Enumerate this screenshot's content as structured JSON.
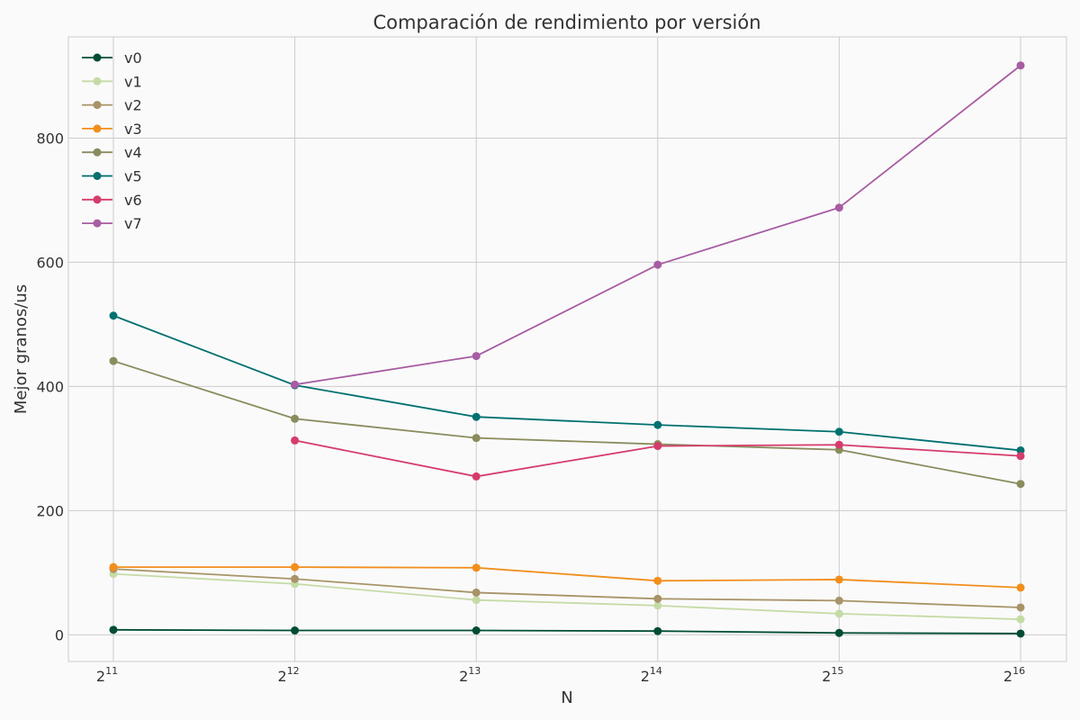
{
  "chart_data": {
    "type": "line",
    "title": "Comparación de rendimiento por versión",
    "xlabel": "N",
    "ylabel": "Mejor granos/us",
    "x_scale": "log2",
    "x": [
      2048,
      4096,
      8192,
      16384,
      32768,
      65536
    ],
    "x_tick_labels": [
      {
        "base": "2",
        "exp": "11"
      },
      {
        "base": "2",
        "exp": "12"
      },
      {
        "base": "2",
        "exp": "13"
      },
      {
        "base": "2",
        "exp": "14"
      },
      {
        "base": "2",
        "exp": "15"
      },
      {
        "base": "2",
        "exp": "16"
      }
    ],
    "y_ticks": [
      "0",
      "200",
      "400",
      "600",
      "800"
    ],
    "ylim": [
      -43,
      963
    ],
    "grid": true,
    "legend_position": "top-left",
    "series": [
      {
        "name": "v0",
        "color": "#004d33",
        "values": [
          8,
          7,
          7,
          6,
          3,
          2
        ]
      },
      {
        "name": "v1",
        "color": "#c5dba6",
        "values": [
          98,
          82,
          56,
          47,
          34,
          25
        ]
      },
      {
        "name": "v2",
        "color": "#a89468",
        "values": [
          106,
          90,
          68,
          58,
          55,
          44
        ]
      },
      {
        "name": "v3",
        "color": "#f28e1c",
        "values": [
          109,
          109,
          108,
          87,
          89,
          76
        ]
      },
      {
        "name": "v4",
        "color": "#8a8c5e",
        "values": [
          441,
          348,
          317,
          307,
          298,
          243
        ]
      },
      {
        "name": "v5",
        "color": "#007070",
        "values": [
          514,
          402,
          351,
          338,
          327,
          297
        ]
      },
      {
        "name": "v6",
        "color": "#d63c6b",
        "values": [
          null,
          313,
          255,
          304,
          306,
          288
        ]
      },
      {
        "name": "v7",
        "color": "#a75ca3",
        "values": [
          null,
          403,
          449,
          596,
          688,
          917
        ]
      }
    ]
  }
}
